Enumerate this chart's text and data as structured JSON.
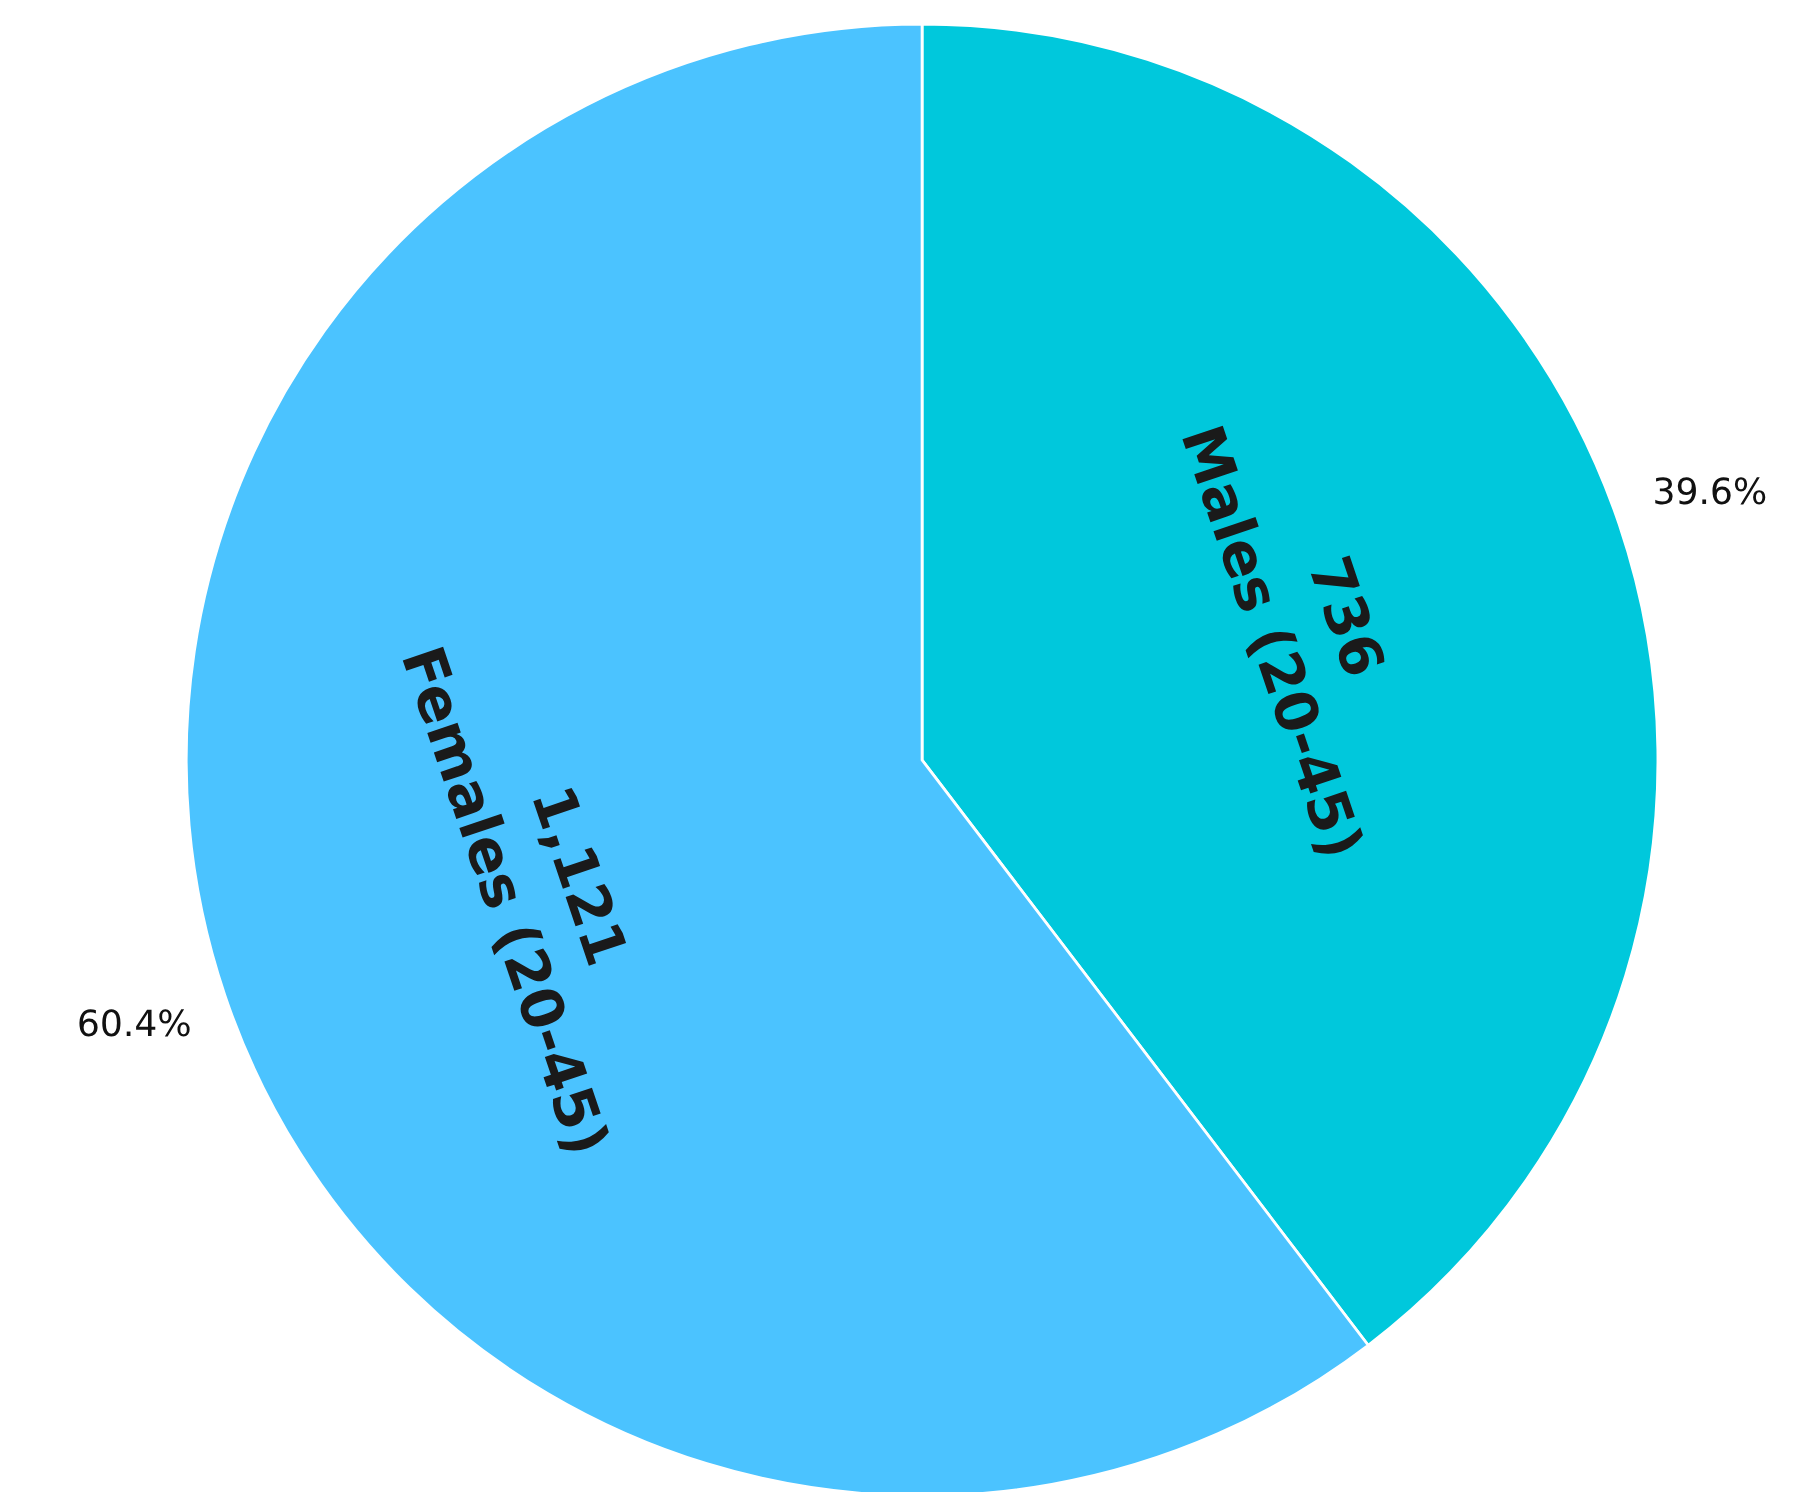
{
  "chart_data": {
    "type": "pie",
    "categories": [
      "Males (20-45)",
      "Females (20-45)"
    ],
    "values": [
      736,
      1121
    ],
    "value_labels": [
      "736",
      "1,121"
    ],
    "colors": [
      "#00c8dc",
      "#4bc3ff"
    ],
    "annotations": [
      "39.6%",
      "60.4%"
    ]
  }
}
